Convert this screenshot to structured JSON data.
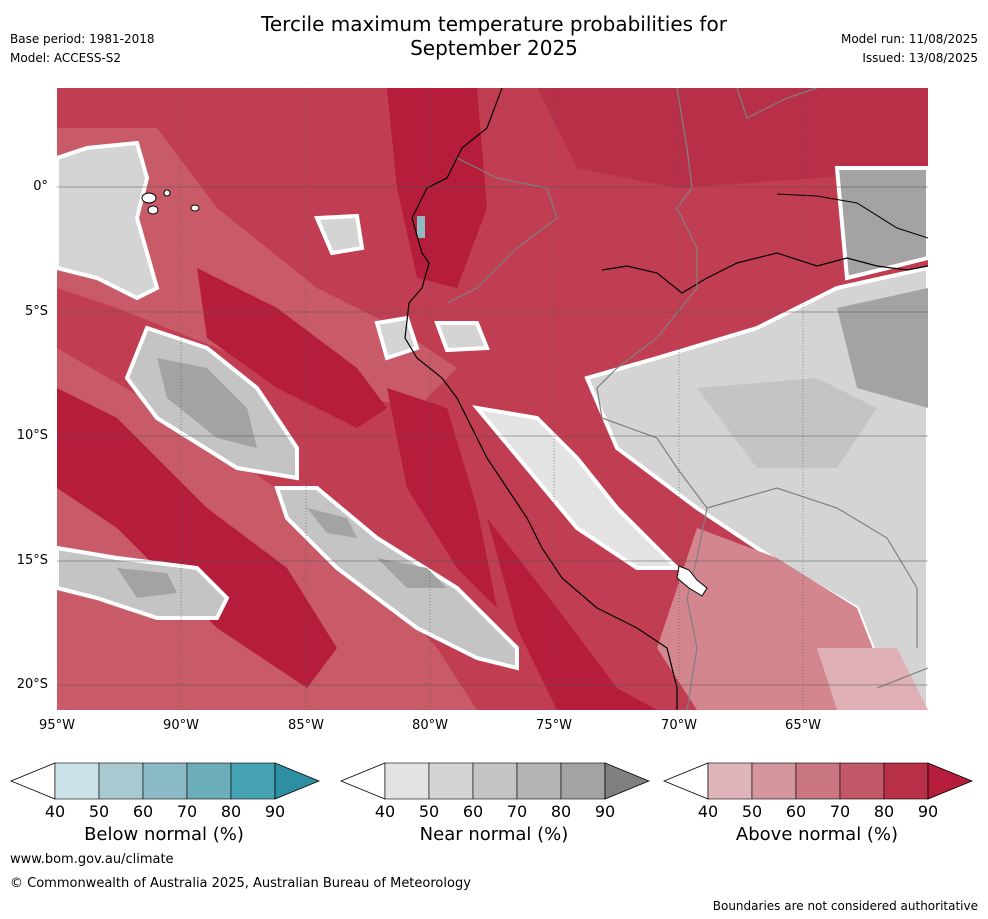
{
  "header": {
    "title_line1": "Tercile maximum temperature probabilities for",
    "title_line2": "September 2025",
    "base_period": "Base period: 1981-2018",
    "model": "Model: ACCESS-S2",
    "model_run": "Model run: 11/08/2025",
    "issued": "Issued: 13/08/2025"
  },
  "map": {
    "lat_labels": [
      "0°",
      "5°S",
      "10°S",
      "15°S",
      "20°S"
    ],
    "lon_labels": [
      "95°W",
      "90°W",
      "85°W",
      "80°W",
      "75°W",
      "70°W",
      "65°W"
    ],
    "colors": {
      "ocean_above_90": "#b51d3b",
      "above_80": "#c13d52",
      "above_70": "#c95b69",
      "above_60": "#d4868f",
      "above_50": "#dfb0b5",
      "near_50": "#d4d4d4",
      "near_60": "#c4c4c4",
      "near_70": "#b4b4b4",
      "near_80": "#a3a3a3",
      "near_40": "#e3e3e3",
      "below_60": "#8fbac4"
    }
  },
  "colorbars": [
    {
      "title": "Below normal (%)",
      "ticks": [
        "40",
        "50",
        "60",
        "70",
        "80",
        "90"
      ],
      "colors": [
        "#ffffff",
        "#cbe3e8",
        "#a7c9cf",
        "#8abac5",
        "#6baeb9",
        "#45a2b2",
        "#2e8fa2"
      ]
    },
    {
      "title": "Near normal (%)",
      "ticks": [
        "40",
        "50",
        "60",
        "70",
        "80",
        "90"
      ],
      "colors": [
        "#ffffff",
        "#e3e3e3",
        "#d4d4d4",
        "#c4c4c4",
        "#b4b4b4",
        "#a3a3a3",
        "#808080"
      ]
    },
    {
      "title": "Above normal (%)",
      "ticks": [
        "40",
        "50",
        "60",
        "70",
        "80",
        "90"
      ],
      "colors": [
        "#ffffff",
        "#dfb5ba",
        "#d4959c",
        "#c97680",
        "#c25868",
        "#b73048",
        "#b51d3b"
      ]
    }
  ],
  "footer": {
    "url": "www.bom.gov.au/climate",
    "copyright": "© Commonwealth of Australia 2025, Australian Bureau of Meteorology",
    "disclaimer": "Boundaries are not considered authoritative"
  }
}
